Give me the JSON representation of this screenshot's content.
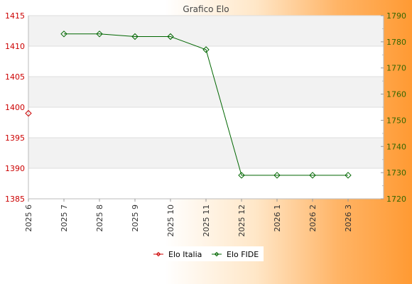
{
  "chart_data": {
    "type": "line",
    "title": "Grafico Elo",
    "categories": [
      "2025 6",
      "2025 7",
      "2025 8",
      "2025 9",
      "2025 10",
      "2025 11",
      "2025 12",
      "2026 1",
      "2026 2",
      "2026 3"
    ],
    "y_left": {
      "ylim": [
        1385,
        1415
      ],
      "ticks": [
        1385,
        1390,
        1395,
        1400,
        1405,
        1410,
        1415
      ],
      "color": "#cc0000"
    },
    "y_right": {
      "ylim": [
        1720,
        1790
      ],
      "ticks": [
        1720,
        1730,
        1740,
        1750,
        1760,
        1770,
        1780,
        1790
      ],
      "color": "#336600"
    },
    "series": [
      {
        "name": "Elo Italia",
        "axis": "left",
        "color": "#cc0000",
        "values": [
          1399,
          null,
          null,
          null,
          null,
          null,
          null,
          null,
          null,
          null
        ]
      },
      {
        "name": "Elo FIDE",
        "axis": "right",
        "color": "#006600",
        "values": [
          null,
          1783,
          1783,
          1782,
          1782,
          1777,
          1729,
          1729,
          1729,
          1729
        ]
      }
    ],
    "legend_position": "bottom-center",
    "grid": true
  }
}
